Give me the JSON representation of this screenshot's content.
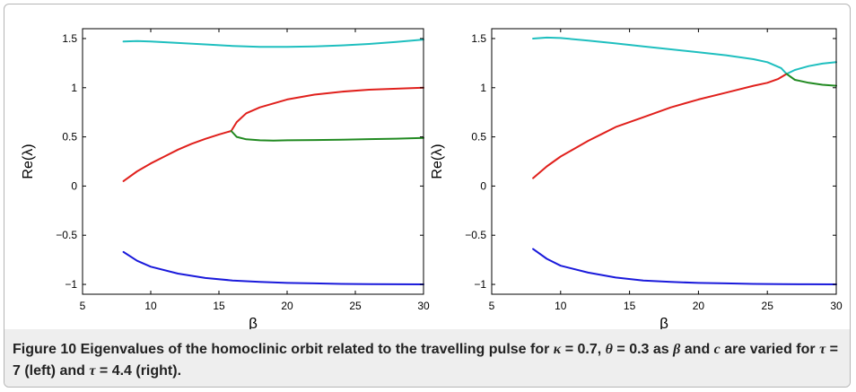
{
  "caption": {
    "label": "Figure 10",
    "text_a": " Eigenvalues of the homoclinic orbit related to the travelling pulse for ",
    "kappa": "κ",
    "eq1": " = 0.7, ",
    "theta": "θ",
    "eq2": " = 0.3 as ",
    "beta": "β",
    "text_b": " and ",
    "c": "c",
    "text_c": " are varied for ",
    "tau1": "τ",
    "eq3": " = 7 (left) and ",
    "tau2": "τ",
    "eq4": " = 4.4 (right)."
  },
  "chart_data": [
    {
      "type": "line",
      "xlabel": "β",
      "ylabel": "Re(λ)",
      "xlim": [
        5,
        30
      ],
      "ylim": [
        -1.1,
        1.6
      ],
      "xticks": [
        5,
        10,
        15,
        20,
        25,
        30
      ],
      "xtick_labels": [
        "5",
        "10",
        "15",
        "20",
        "25",
        "30"
      ],
      "yticks": [
        -1,
        -0.5,
        0,
        0.5,
        1,
        1.5
      ],
      "ytick_labels": [
        "−1",
        "−0.5",
        "0",
        "0.5",
        "1",
        "1.5"
      ],
      "grid": false,
      "series": [
        {
          "color": "#1fbfbf",
          "x": [
            8,
            9,
            10,
            12,
            14,
            16,
            18,
            20,
            22,
            24,
            26,
            28,
            30
          ],
          "y": [
            1.47,
            1.475,
            1.47,
            1.455,
            1.44,
            1.425,
            1.415,
            1.415,
            1.42,
            1.43,
            1.445,
            1.465,
            1.49
          ]
        },
        {
          "color": "#e0201c",
          "x": [
            8,
            9,
            10,
            11,
            12,
            13,
            14,
            15,
            15.9,
            16.3,
            17,
            18,
            20,
            22,
            24,
            26,
            28,
            30
          ],
          "y": [
            0.05,
            0.15,
            0.23,
            0.3,
            0.37,
            0.43,
            0.48,
            0.525,
            0.56,
            0.65,
            0.74,
            0.8,
            0.88,
            0.93,
            0.96,
            0.98,
            0.99,
            1.0
          ]
        },
        {
          "color": "#218a21",
          "x": [
            15.9,
            16.3,
            17,
            18,
            19,
            20,
            22,
            24,
            26,
            28,
            30
          ],
          "y": [
            0.56,
            0.5,
            0.475,
            0.465,
            0.462,
            0.465,
            0.468,
            0.472,
            0.477,
            0.482,
            0.49
          ]
        },
        {
          "color": "#1a1adb",
          "x": [
            8,
            9,
            10,
            12,
            14,
            16,
            18,
            20,
            22,
            24,
            26,
            28,
            30
          ],
          "y": [
            -0.67,
            -0.76,
            -0.82,
            -0.89,
            -0.935,
            -0.96,
            -0.975,
            -0.985,
            -0.99,
            -0.995,
            -0.997,
            -0.999,
            -1.0
          ]
        }
      ]
    },
    {
      "type": "line",
      "xlabel": "β",
      "ylabel": "Re(λ)",
      "xlim": [
        5,
        30
      ],
      "ylim": [
        -1.1,
        1.6
      ],
      "xticks": [
        5,
        10,
        15,
        20,
        25,
        30
      ],
      "xtick_labels": [
        "5",
        "10",
        "15",
        "20",
        "25",
        "30"
      ],
      "yticks": [
        -1,
        -0.5,
        0,
        0.5,
        1,
        1.5
      ],
      "ytick_labels": [
        "−1",
        "−0.5",
        "0",
        "0.5",
        "1",
        "1.5"
      ],
      "grid": false,
      "series": [
        {
          "color": "#1fbfbf",
          "x": [
            8,
            9,
            10,
            12,
            14,
            16,
            18,
            20,
            22,
            24,
            25,
            26,
            26.4,
            27,
            28,
            29,
            30
          ],
          "y": [
            1.5,
            1.51,
            1.505,
            1.48,
            1.45,
            1.42,
            1.39,
            1.36,
            1.33,
            1.29,
            1.26,
            1.2,
            1.14,
            1.18,
            1.22,
            1.245,
            1.26
          ]
        },
        {
          "color": "#e0201c",
          "x": [
            8,
            9,
            10,
            11,
            12,
            13,
            14,
            16,
            18,
            20,
            22,
            24,
            25,
            25.8,
            26.4
          ],
          "y": [
            0.08,
            0.2,
            0.3,
            0.38,
            0.46,
            0.53,
            0.6,
            0.7,
            0.8,
            0.88,
            0.95,
            1.02,
            1.05,
            1.09,
            1.14
          ]
        },
        {
          "color": "#218a21",
          "x": [
            26.4,
            27,
            28,
            29,
            30
          ],
          "y": [
            1.14,
            1.08,
            1.05,
            1.03,
            1.02
          ]
        },
        {
          "color": "#1a1adb",
          "x": [
            8,
            9,
            10,
            12,
            14,
            16,
            18,
            20,
            22,
            24,
            26,
            28,
            30
          ],
          "y": [
            -0.64,
            -0.74,
            -0.81,
            -0.88,
            -0.93,
            -0.96,
            -0.975,
            -0.985,
            -0.99,
            -0.995,
            -0.997,
            -0.999,
            -1.0
          ]
        }
      ]
    }
  ]
}
